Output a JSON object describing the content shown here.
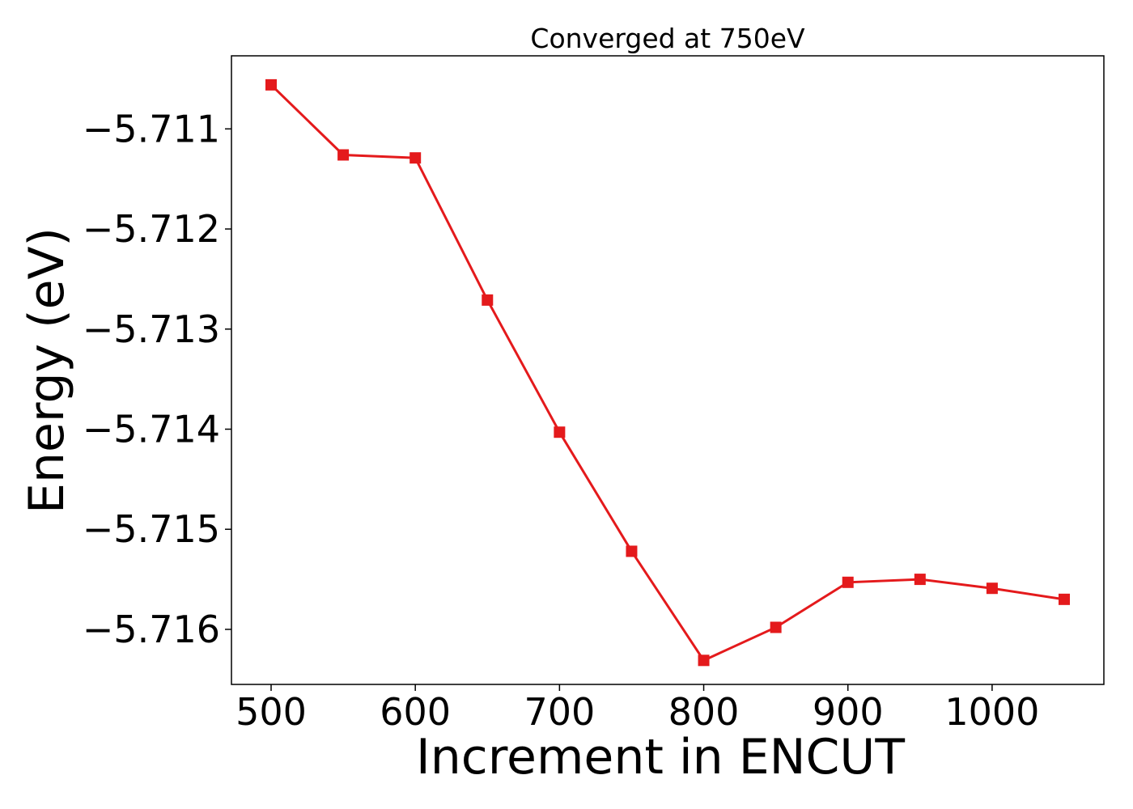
{
  "chart_data": {
    "type": "line",
    "title": "Converged at 750eV",
    "xlabel": "Increment in ENCUT",
    "ylabel": "Energy (eV)",
    "xlim": [
      472.5,
      1077.5
    ],
    "ylim": [
      -5.71655,
      -5.71027
    ],
    "x_ticks": [
      500,
      600,
      700,
      800,
      900,
      1000
    ],
    "x_tick_labels": [
      "500",
      "600",
      "700",
      "800",
      "900",
      "1000"
    ],
    "y_ticks": [
      -5.711,
      -5.712,
      -5.713,
      -5.714,
      -5.715,
      -5.716
    ],
    "y_tick_labels": [
      "−5.711",
      "−5.712",
      "−5.713",
      "−5.714",
      "−5.715",
      "−5.716"
    ],
    "grid": false,
    "series": [
      {
        "color": "#e41a1c",
        "marker": "square",
        "x": [
          500,
          550,
          600,
          650,
          700,
          750,
          800,
          850,
          900,
          950,
          1000,
          1050
        ],
        "y": [
          -5.71056,
          -5.71126,
          -5.71129,
          -5.71271,
          -5.71403,
          -5.71522,
          -5.71631,
          -5.71598,
          -5.71553,
          -5.7155,
          -5.71559,
          -5.7157
        ]
      }
    ]
  }
}
